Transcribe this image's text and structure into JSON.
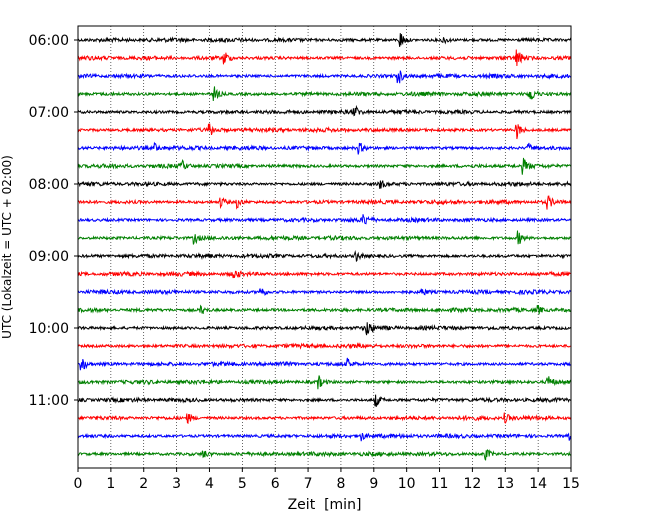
{
  "chart_data": {
    "type": "line",
    "title": "",
    "xlabel": "Zeit  [min]",
    "ylabel": "UTC (Lokalzeit = UTC + 02:00)",
    "xlim": [
      0,
      15
    ],
    "x_ticks": [
      "0",
      "1",
      "2",
      "3",
      "4",
      "5",
      "6",
      "7",
      "8",
      "9",
      "10",
      "11",
      "12",
      "13",
      "14",
      "15"
    ],
    "y_tick_labels": [
      "06:00",
      "07:00",
      "08:00",
      "09:00",
      "10:00",
      "11:00"
    ],
    "grid": "vertical dotted",
    "trace_colors": [
      "#000000",
      "#ff0000",
      "#0000ff",
      "#008000"
    ],
    "series": [
      {
        "start": "06:00",
        "color": "#000000",
        "events": [
          {
            "t": 9.8,
            "amp": 1.0
          },
          {
            "t": 11.1,
            "amp": 0.45
          }
        ]
      },
      {
        "start": "06:15",
        "color": "#ff0000",
        "events": [
          {
            "t": 4.45,
            "amp": 0.8
          },
          {
            "t": 13.35,
            "amp": 1.0
          }
        ]
      },
      {
        "start": "06:30",
        "color": "#0000ff",
        "events": [
          {
            "t": 9.75,
            "amp": 0.9
          }
        ]
      },
      {
        "start": "06:45",
        "color": "#008000",
        "events": [
          {
            "t": 4.15,
            "amp": 0.8
          },
          {
            "t": 13.75,
            "amp": 0.9
          }
        ]
      },
      {
        "start": "07:00",
        "color": "#000000",
        "events": [
          {
            "t": 8.4,
            "amp": 0.8
          }
        ]
      },
      {
        "start": "07:15",
        "color": "#ff0000",
        "events": [
          {
            "t": 4.0,
            "amp": 0.7
          },
          {
            "t": 13.35,
            "amp": 1.0
          }
        ]
      },
      {
        "start": "07:30",
        "color": "#0000ff",
        "events": [
          {
            "t": 2.35,
            "amp": 0.5
          },
          {
            "t": 8.55,
            "amp": 0.6
          },
          {
            "t": 13.7,
            "amp": 0.5
          }
        ]
      },
      {
        "start": "07:45",
        "color": "#008000",
        "events": [
          {
            "t": 3.15,
            "amp": 0.6
          },
          {
            "t": 13.55,
            "amp": 0.8
          }
        ]
      },
      {
        "start": "08:00",
        "color": "#000000",
        "events": [
          {
            "t": 9.15,
            "amp": 0.8
          }
        ]
      },
      {
        "start": "08:15",
        "color": "#ff0000",
        "events": [
          {
            "t": 4.35,
            "amp": 0.6
          },
          {
            "t": 4.85,
            "amp": 0.6
          },
          {
            "t": 14.3,
            "amp": 0.7
          }
        ]
      },
      {
        "start": "08:30",
        "color": "#0000ff",
        "events": [
          {
            "t": 8.7,
            "amp": 0.6
          }
        ]
      },
      {
        "start": "08:45",
        "color": "#008000",
        "events": [
          {
            "t": 3.55,
            "amp": 0.6
          },
          {
            "t": 13.4,
            "amp": 0.8
          }
        ]
      },
      {
        "start": "09:00",
        "color": "#000000",
        "events": [
          {
            "t": 8.45,
            "amp": 0.6
          }
        ]
      },
      {
        "start": "09:15",
        "color": "#ff0000",
        "events": [
          {
            "t": 4.75,
            "amp": 0.5
          }
        ]
      },
      {
        "start": "09:30",
        "color": "#0000ff",
        "events": [
          {
            "t": 5.55,
            "amp": 0.7
          },
          {
            "t": 10.45,
            "amp": 0.45
          }
        ]
      },
      {
        "start": "09:45",
        "color": "#008000",
        "events": [
          {
            "t": 3.75,
            "amp": 0.5
          },
          {
            "t": 14.0,
            "amp": 0.45
          }
        ]
      },
      {
        "start": "10:00",
        "color": "#000000",
        "events": [
          {
            "t": 8.8,
            "amp": 0.8
          }
        ]
      },
      {
        "start": "10:15",
        "color": "#ff0000",
        "events": []
      },
      {
        "start": "10:30",
        "color": "#0000ff",
        "events": [
          {
            "t": 0.1,
            "amp": 1.0
          },
          {
            "t": 8.2,
            "amp": 0.5
          }
        ]
      },
      {
        "start": "10:45",
        "color": "#008000",
        "events": [
          {
            "t": 7.3,
            "amp": 0.8
          },
          {
            "t": 14.3,
            "amp": 0.7
          }
        ]
      },
      {
        "start": "11:00",
        "color": "#000000",
        "events": [
          {
            "t": 9.05,
            "amp": 0.8
          }
        ]
      },
      {
        "start": "11:15",
        "color": "#ff0000",
        "events": [
          {
            "t": 3.35,
            "amp": 0.5
          },
          {
            "t": 13.0,
            "amp": 0.5
          }
        ]
      },
      {
        "start": "11:30",
        "color": "#0000ff",
        "events": [
          {
            "t": 8.6,
            "amp": 0.6
          },
          {
            "t": 14.95,
            "amp": 0.5
          }
        ]
      },
      {
        "start": "11:45",
        "color": "#008000",
        "events": [
          {
            "t": 3.8,
            "amp": 0.5
          },
          {
            "t": 12.4,
            "amp": 0.6
          }
        ]
      }
    ]
  }
}
